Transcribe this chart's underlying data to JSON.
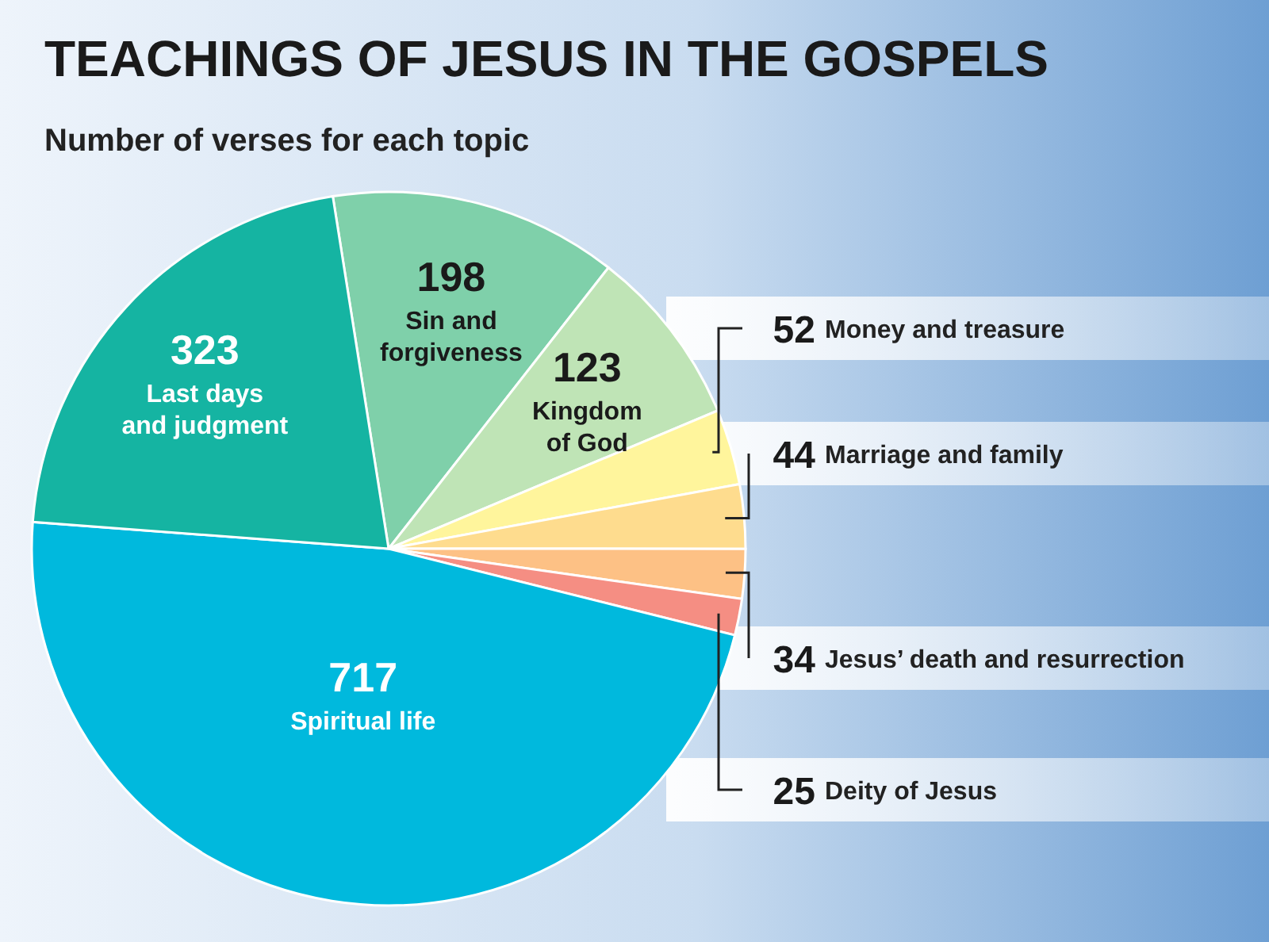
{
  "chart_data": {
    "type": "pie",
    "title": "TEACHINGS OF JESUS IN THE GOSPELS",
    "subtitle": "Number of verses for each topic",
    "categories": [
      "Sin and forgiveness",
      "Kingdom of God",
      "Money and treasure",
      "Marriage and family",
      "Jesus’ death and resurrection",
      "Deity of Jesus",
      "Spiritual life",
      "Last days and judgment"
    ],
    "values": [
      198,
      123,
      52,
      44,
      34,
      25,
      717,
      323
    ],
    "colors": [
      "#7fd0aa",
      "#bfe4b6",
      "#fff59c",
      "#fedc8e",
      "#fdc185",
      "#f58e83",
      "#00b9dd",
      "#15b4a2"
    ],
    "data_labels": true
  }
}
